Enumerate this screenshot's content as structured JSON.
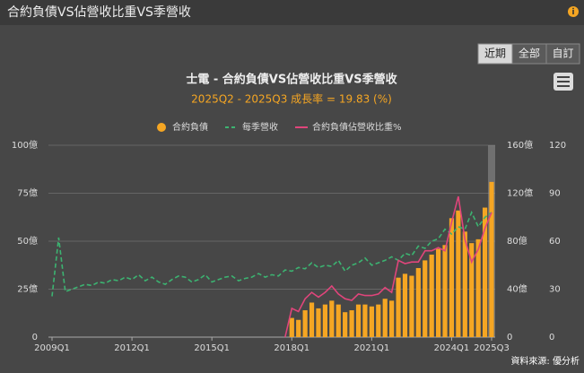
{
  "header": {
    "title": "合約負債VS佔營收比重VS季營收",
    "buttons": [
      "近期",
      "全部",
      "自訂"
    ]
  },
  "chart_data": {
    "type": "combo",
    "title": "士電 - 合約負債VS佔營收比重VS季營收",
    "subtitle": "2025Q2 - 2025Q3 成長率 = 19.83 (%)",
    "categories": [
      "2009Q1",
      null,
      null,
      null,
      null,
      null,
      null,
      null,
      null,
      null,
      null,
      null,
      "2012Q1",
      null,
      null,
      null,
      null,
      null,
      null,
      null,
      null,
      null,
      null,
      null,
      "2015Q1",
      null,
      null,
      null,
      null,
      null,
      null,
      null,
      null,
      null,
      null,
      null,
      "2018Q1",
      null,
      null,
      null,
      null,
      null,
      null,
      null,
      null,
      null,
      null,
      null,
      "2021Q1",
      null,
      null,
      null,
      null,
      null,
      null,
      null,
      null,
      null,
      null,
      null,
      "2024Q1",
      null,
      null,
      null,
      null,
      null,
      "2025Q3"
    ],
    "series": [
      {
        "name": "合約負債",
        "kind": "bar",
        "color": "#f5a623",
        "axis": "y",
        "values": [
          null,
          null,
          null,
          null,
          null,
          null,
          null,
          null,
          null,
          null,
          null,
          null,
          null,
          null,
          null,
          null,
          null,
          null,
          null,
          null,
          null,
          null,
          null,
          null,
          null,
          null,
          null,
          null,
          null,
          null,
          null,
          null,
          null,
          null,
          null,
          null,
          10,
          9,
          14,
          18,
          15,
          17,
          19,
          17,
          13,
          14,
          17,
          17,
          16,
          17,
          20,
          19,
          31,
          33,
          32,
          36,
          40,
          43,
          46,
          48,
          62,
          66,
          55,
          49,
          51,
          67.5,
          80.9
        ]
      },
      {
        "name": "每季營收",
        "kind": "dashed",
        "color": "#3cb371",
        "axis": "y2",
        "values": [
          34,
          83,
          38,
          40,
          42,
          44,
          43,
          46,
          45,
          48,
          47,
          50,
          48,
          52,
          47,
          50,
          46,
          44,
          48,
          51,
          50,
          46,
          48,
          52,
          46,
          48,
          50,
          51,
          47,
          49,
          50,
          53,
          50,
          52,
          51,
          56,
          55,
          58,
          57,
          62,
          58,
          60,
          59,
          64,
          55,
          60,
          62,
          66,
          60,
          62,
          64,
          67,
          64,
          70,
          68,
          76,
          74,
          80,
          82,
          90,
          86,
          92,
          90,
          104,
          92,
          100,
          104
        ]
      },
      {
        "name": "合約負債佔營收比重%",
        "kind": "line",
        "color": "#e0457b",
        "axis": "y3",
        "values": [
          null,
          null,
          null,
          null,
          null,
          null,
          null,
          null,
          null,
          null,
          null,
          null,
          null,
          null,
          null,
          null,
          null,
          null,
          null,
          null,
          null,
          null,
          null,
          null,
          null,
          null,
          null,
          null,
          null,
          null,
          null,
          null,
          null,
          null,
          null,
          0,
          18,
          16,
          24,
          28,
          25,
          28,
          32,
          27,
          24,
          23,
          27,
          26,
          26,
          27,
          31,
          28,
          48,
          46,
          47,
          47,
          54,
          54,
          56,
          54,
          72,
          88,
          61,
          47,
          55,
          68,
          78
        ]
      }
    ],
    "ylim": [
      0,
      100
    ],
    "yticks": [
      0,
      {
        "value": 25,
        "label": "25億"
      },
      {
        "value": 50,
        "label": "50億"
      },
      {
        "value": 75,
        "label": "75億"
      },
      {
        "value": 100,
        "label": "100億"
      }
    ],
    "y2lim": [
      0,
      160
    ],
    "y2ticks": [
      0,
      {
        "value": 40,
        "label": "40億"
      },
      {
        "value": 80,
        "label": "80億"
      },
      {
        "value": 120,
        "label": "120億"
      },
      {
        "value": 160,
        "label": "160億"
      }
    ],
    "y3lim": [
      0,
      120
    ],
    "y3ticks": [
      0,
      30,
      60,
      90,
      120
    ],
    "grid": true,
    "source": "資料來源: 優分析"
  }
}
